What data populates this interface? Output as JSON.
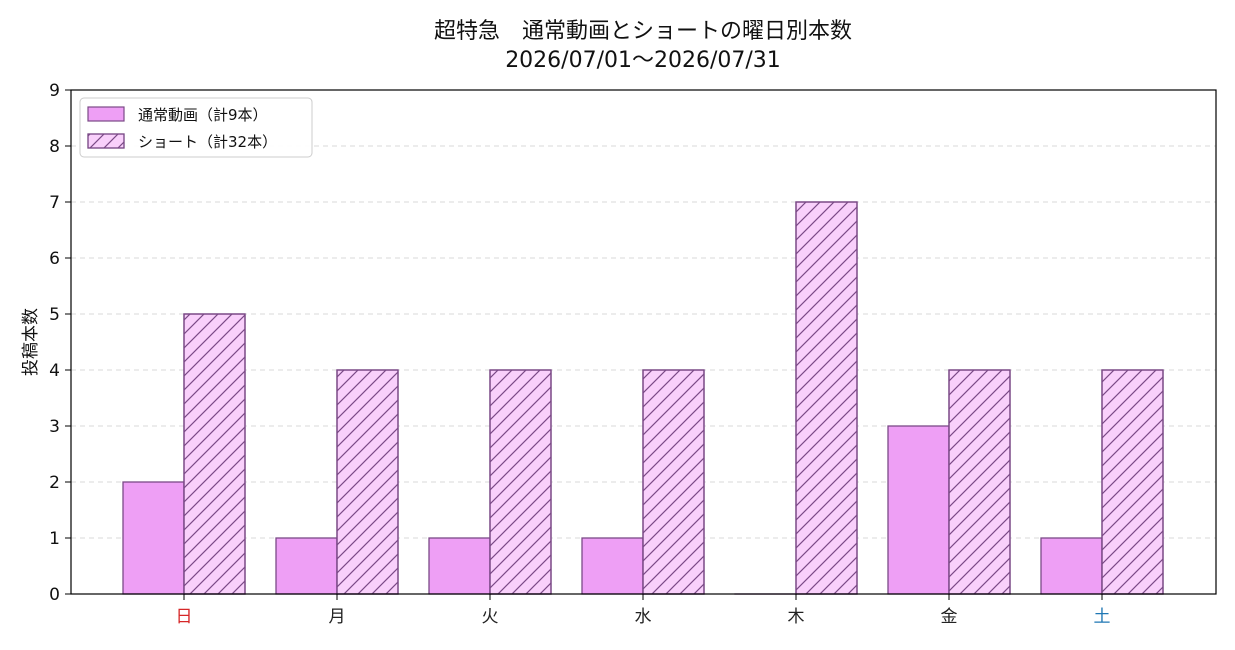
{
  "chart_data": {
    "type": "bar",
    "title": "超特急　通常動画とショートの曜日別本数",
    "subtitle": "2026/07/01〜2026/07/31",
    "xlabel": "",
    "ylabel": "投稿本数",
    "ylim": [
      0,
      9
    ],
    "yticks": [
      "0",
      "1",
      "2",
      "3",
      "4",
      "5",
      "6",
      "7",
      "8",
      "9"
    ],
    "grid": true,
    "legend_position": "top-left",
    "categories": [
      "日",
      "月",
      "火",
      "水",
      "木",
      "金",
      "土"
    ],
    "category_colors": [
      "#d62728",
      "#222222",
      "#222222",
      "#222222",
      "#222222",
      "#222222",
      "#1f77b4"
    ],
    "series": [
      {
        "name": "通常動画（計9本）",
        "values": [
          2,
          1,
          1,
          1,
          0,
          3,
          1
        ],
        "color": "#ee9ff5",
        "edge": "#7b4a87",
        "hatch": false
      },
      {
        "name": "ショート（計32本）",
        "values": [
          5,
          4,
          4,
          4,
          7,
          4,
          4
        ],
        "color": "#f9d0fb",
        "edge": "#7b4a87",
        "hatch": true
      }
    ]
  }
}
